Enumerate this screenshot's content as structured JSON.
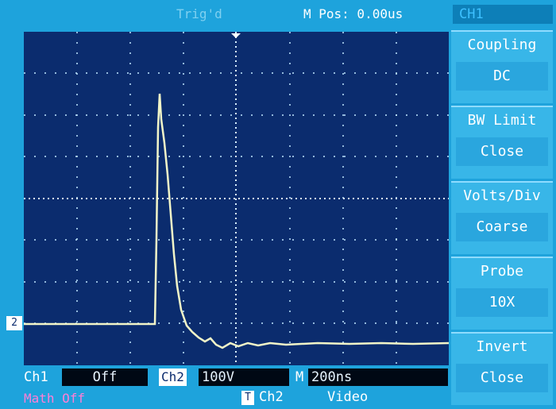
{
  "header": {
    "trigger_status": "Trig'd",
    "m_pos": "M Pos: 0.00us",
    "channel": "CH1"
  },
  "menu": [
    {
      "label": "Coupling",
      "value": "DC"
    },
    {
      "label": "BW  Limit",
      "value": "Close"
    },
    {
      "label": "Volts/Div",
      "value": "Coarse"
    },
    {
      "label": "Probe",
      "value": "10X"
    },
    {
      "label": "Invert",
      "value": "Close"
    }
  ],
  "marker": "2",
  "status": {
    "ch1_label": "Ch1",
    "ch1_value": "Off",
    "ch2_label": "Ch2",
    "ch2_value": "100V",
    "time_label": "M",
    "time_value": "200ns",
    "math": "Math Off",
    "trigger_icon": "T",
    "trigger_source": "Ch2",
    "trigger_mode": "Video"
  }
}
